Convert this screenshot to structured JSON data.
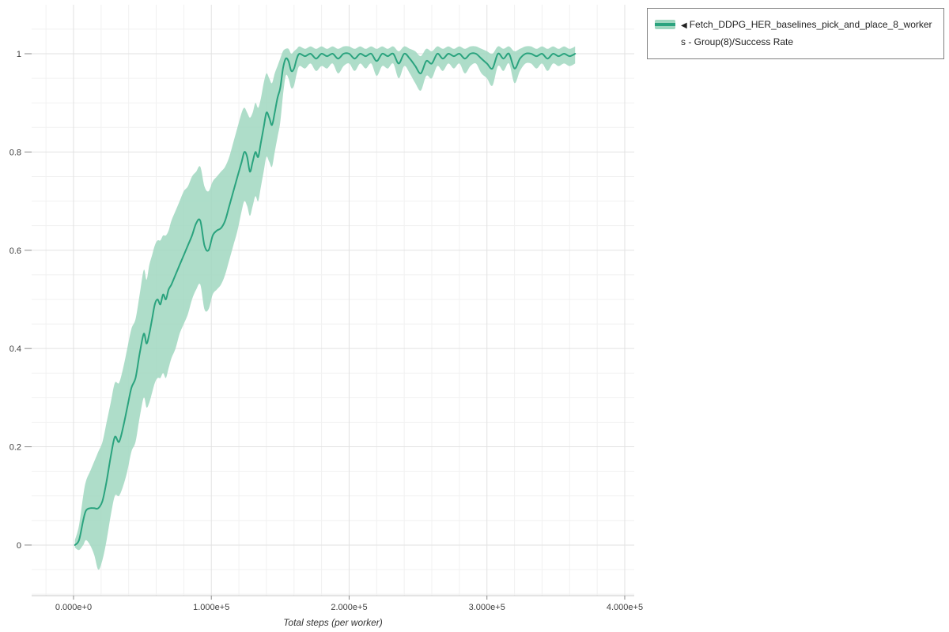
{
  "window": {
    "background": "#ffffff"
  },
  "legend": {
    "collapse_icon": "◀",
    "label": "Fetch_DDPG_HER_baselines_pick_and_place_8_workers - Group(8)/Success Rate",
    "border_color": "#7f7f7f"
  },
  "colors": {
    "grid_major": "#e2e2e2",
    "grid_minor": "#f1f1f1",
    "axis_line": "#c8c8c8",
    "tick": "#8a8a8a",
    "tick_label": "#3f3f3f",
    "axis_title": "#333333"
  },
  "chart_data": {
    "type": "line",
    "title": "",
    "xlabel": "Total steps (per worker)",
    "ylabel": "",
    "xlim": [
      -30400,
      406900
    ],
    "ylim": [
      -0.103,
      1.0997
    ],
    "grid": true,
    "x_minor_step": 20000,
    "y_minor_step": 0.05,
    "legend_position": "top-right",
    "x_ticks": [
      {
        "value": 0,
        "label": "0.000e+0"
      },
      {
        "value": 100000,
        "label": "1.000e+5"
      },
      {
        "value": 200000,
        "label": "2.000e+5"
      },
      {
        "value": 300000,
        "label": "3.000e+5"
      },
      {
        "value": 400000,
        "label": "4.000e+5"
      }
    ],
    "y_ticks": [
      {
        "value": 0,
        "label": "0"
      },
      {
        "value": 0.2,
        "label": "0.2"
      },
      {
        "value": 0.4,
        "label": "0.4"
      },
      {
        "value": 0.6,
        "label": "0.6"
      },
      {
        "value": 0.8,
        "label": "0.8"
      },
      {
        "value": 1,
        "label": "1"
      }
    ],
    "series": [
      {
        "name": "Fetch_DDPG_HER_baselines_pick_and_place_8_workers - Group(8)/Success Rate",
        "color": "#2aa37e",
        "band_color": "#a0d7c0",
        "x": [
          1000,
          4000,
          7000,
          9000,
          12000,
          15000,
          18000,
          21000,
          24000,
          27000,
          30000,
          33000,
          36000,
          39000,
          42000,
          45000,
          48000,
          51000,
          53000,
          55000,
          57000,
          59000,
          61000,
          63000,
          65000,
          67000,
          69000,
          71000,
          74000,
          77000,
          80000,
          83000,
          86000,
          89000,
          92000,
          95000,
          98000,
          101000,
          104000,
          107000,
          110000,
          113000,
          116000,
          119000,
          122000,
          124000,
          126000,
          128000,
          130000,
          132000,
          134000,
          136000,
          138000,
          140000,
          142000,
          144000,
          146000,
          148000,
          150000,
          152000,
          154000,
          156000,
          158000,
          160000,
          162000,
          164000,
          168000,
          172000,
          176000,
          180000,
          184000,
          188000,
          192000,
          196000,
          200000,
          204000,
          208000,
          212000,
          216000,
          220000,
          224000,
          228000,
          232000,
          236000,
          240000,
          244000,
          248000,
          252000,
          256000,
          260000,
          264000,
          268000,
          272000,
          276000,
          280000,
          284000,
          288000,
          292000,
          296000,
          300000,
          304000,
          308000,
          312000,
          316000,
          320000,
          324000,
          328000,
          332000,
          336000,
          340000,
          344000,
          348000,
          352000,
          356000,
          360000,
          364000
        ],
        "y": [
          0.0,
          0.01,
          0.05,
          0.07,
          0.075,
          0.075,
          0.075,
          0.09,
          0.13,
          0.18,
          0.22,
          0.21,
          0.24,
          0.28,
          0.32,
          0.34,
          0.39,
          0.43,
          0.41,
          0.43,
          0.46,
          0.49,
          0.5,
          0.49,
          0.51,
          0.5,
          0.52,
          0.53,
          0.55,
          0.57,
          0.59,
          0.61,
          0.63,
          0.655,
          0.66,
          0.61,
          0.6,
          0.63,
          0.64,
          0.645,
          0.66,
          0.69,
          0.72,
          0.75,
          0.78,
          0.8,
          0.79,
          0.76,
          0.78,
          0.8,
          0.79,
          0.82,
          0.85,
          0.88,
          0.87,
          0.855,
          0.88,
          0.91,
          0.93,
          0.97,
          0.99,
          0.985,
          0.965,
          0.97,
          0.99,
          1.0,
          0.995,
          1.0,
          0.99,
          1.0,
          0.995,
          1.0,
          0.99,
          1.0,
          1.0,
          0.99,
          1.0,
          0.995,
          1.0,
          0.985,
          1.0,
          0.995,
          1.0,
          0.98,
          1.0,
          0.99,
          0.975,
          0.96,
          0.985,
          0.98,
          1.0,
          0.99,
          1.0,
          0.995,
          1.0,
          0.99,
          1.0,
          1.0,
          0.99,
          0.98,
          0.97,
          1.0,
          0.99,
          1.0,
          0.97,
          0.99,
          1.0,
          1.0,
          0.995,
          1.0,
          0.99,
          1.0,
          0.995,
          1.0,
          0.995,
          1.0
        ],
        "y_lower": [
          -0.005,
          -0.01,
          0.0,
          0.01,
          0.0,
          -0.02,
          -0.05,
          -0.03,
          0.01,
          0.06,
          0.1,
          0.1,
          0.12,
          0.15,
          0.19,
          0.21,
          0.26,
          0.3,
          0.28,
          0.29,
          0.31,
          0.33,
          0.34,
          0.34,
          0.35,
          0.34,
          0.36,
          0.38,
          0.4,
          0.43,
          0.45,
          0.47,
          0.5,
          0.52,
          0.53,
          0.48,
          0.48,
          0.51,
          0.52,
          0.53,
          0.55,
          0.58,
          0.61,
          0.64,
          0.68,
          0.7,
          0.69,
          0.67,
          0.69,
          0.71,
          0.7,
          0.73,
          0.76,
          0.79,
          0.78,
          0.77,
          0.8,
          0.83,
          0.86,
          0.915,
          0.955,
          0.95,
          0.93,
          0.935,
          0.96,
          0.975,
          0.97,
          0.98,
          0.965,
          0.975,
          0.97,
          0.98,
          0.96,
          0.975,
          0.98,
          0.965,
          0.98,
          0.97,
          0.98,
          0.955,
          0.975,
          0.97,
          0.98,
          0.95,
          0.975,
          0.96,
          0.94,
          0.925,
          0.955,
          0.95,
          0.975,
          0.965,
          0.98,
          0.97,
          0.98,
          0.96,
          0.975,
          0.98,
          0.96,
          0.95,
          0.935,
          0.975,
          0.965,
          0.98,
          0.94,
          0.965,
          0.98,
          0.98,
          0.97,
          0.98,
          0.965,
          0.98,
          0.975,
          0.98,
          0.975,
          0.98
        ],
        "y_upper": [
          0.01,
          0.04,
          0.1,
          0.13,
          0.15,
          0.17,
          0.19,
          0.21,
          0.25,
          0.29,
          0.33,
          0.33,
          0.36,
          0.4,
          0.44,
          0.46,
          0.51,
          0.56,
          0.54,
          0.57,
          0.59,
          0.61,
          0.62,
          0.62,
          0.63,
          0.63,
          0.64,
          0.66,
          0.68,
          0.7,
          0.72,
          0.73,
          0.75,
          0.76,
          0.77,
          0.73,
          0.72,
          0.74,
          0.75,
          0.76,
          0.77,
          0.79,
          0.82,
          0.85,
          0.88,
          0.89,
          0.88,
          0.87,
          0.88,
          0.9,
          0.89,
          0.91,
          0.94,
          0.96,
          0.95,
          0.94,
          0.96,
          0.975,
          0.99,
          1.005,
          1.01,
          1.01,
          1.0,
          1.005,
          1.01,
          1.015,
          1.01,
          1.015,
          1.01,
          1.015,
          1.01,
          1.015,
          1.01,
          1.015,
          1.015,
          1.01,
          1.015,
          1.01,
          1.015,
          1.01,
          1.015,
          1.01,
          1.015,
          1.005,
          1.015,
          1.01,
          1.005,
          0.995,
          1.01,
          1.005,
          1.015,
          1.01,
          1.015,
          1.01,
          1.015,
          1.01,
          1.015,
          1.015,
          1.01,
          1.005,
          1.0,
          1.015,
          1.01,
          1.015,
          1.005,
          1.01,
          1.015,
          1.015,
          1.01,
          1.015,
          1.01,
          1.015,
          1.01,
          1.015,
          1.01,
          1.015
        ]
      }
    ]
  }
}
